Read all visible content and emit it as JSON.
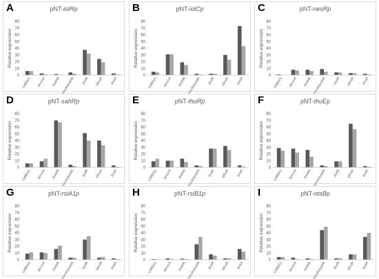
{
  "colors": {
    "series1": "#595959",
    "series2": "#a6a6a6",
    "axis": "#bfbfbf",
    "text": "#595959"
  },
  "ylabel": "Relative expression",
  "categories": [
    "LMB001",
    "ΔmcnA",
    "ΔsahR",
    "ΔmcnA/ΔsahR",
    "ΔiolR",
    "ΔthuR",
    "ΔrsiA"
  ],
  "chart_data": [
    {
      "letter": "A",
      "title_prefix": "pNT-",
      "title_italic": "iolRp",
      "type": "bar",
      "ylim": [
        0,
        80
      ],
      "yticks": [
        0,
        10,
        20,
        30,
        40,
        50,
        60,
        70,
        80
      ],
      "series": [
        {
          "values": [
            6,
            2.5,
            1.5,
            4,
            37.5,
            24,
            2.5
          ]
        },
        {
          "values": [
            6,
            1,
            0.5,
            2,
            32,
            19,
            1
          ]
        }
      ]
    },
    {
      "letter": "B",
      "title_prefix": "pNT-",
      "title_italic": "iolCp",
      "type": "bar",
      "ylim": [
        0,
        80
      ],
      "yticks": [
        0,
        10,
        20,
        30,
        40,
        50,
        60,
        70,
        80
      ],
      "series": [
        {
          "values": [
            5,
            31,
            19,
            2,
            2,
            30,
            73
          ]
        },
        {
          "values": [
            4,
            31,
            15,
            1,
            2,
            23,
            43
          ]
        }
      ]
    },
    {
      "letter": "C",
      "title_prefix": "pNT-",
      "title_italic": "nesRp",
      "type": "bar",
      "ylim": [
        0,
        80
      ],
      "yticks": [
        0,
        10,
        20,
        30,
        40,
        50,
        60,
        70,
        80
      ],
      "series": [
        {
          "values": [
            1,
            8,
            8,
            9,
            4,
            3,
            2
          ]
        },
        {
          "values": [
            0.5,
            7,
            6,
            5,
            4,
            3,
            1
          ]
        }
      ]
    },
    {
      "letter": "D",
      "title_prefix": "pNT-",
      "title_italic": "sahRp",
      "type": "bar",
      "ylim": [
        0,
        80
      ],
      "yticks": [
        0,
        10,
        20,
        30,
        40,
        50,
        60,
        70,
        80
      ],
      "series": [
        {
          "values": [
            6,
            9,
            70,
            4,
            51,
            40,
            3
          ]
        },
        {
          "values": [
            6,
            13,
            67,
            2,
            40,
            33,
            1
          ]
        }
      ]
    },
    {
      "letter": "E",
      "title_prefix": "pNT-",
      "title_italic": "thuRp",
      "type": "bar",
      "ylim": [
        0,
        80
      ],
      "yticks": [
        0,
        10,
        20,
        30,
        40,
        50,
        60,
        70,
        80
      ],
      "series": [
        {
          "values": [
            9,
            10,
            13,
            3,
            28,
            32,
            3
          ]
        },
        {
          "values": [
            13,
            10,
            8,
            2,
            28,
            26,
            1
          ]
        }
      ]
    },
    {
      "letter": "F",
      "title_prefix": "pNT-",
      "title_italic": "thuEp",
      "type": "bar",
      "ylim": [
        0,
        80
      ],
      "yticks": [
        0,
        10,
        20,
        30,
        40,
        50,
        60,
        70,
        80
      ],
      "series": [
        {
          "values": [
            29,
            28,
            26,
            3,
            9,
            65,
            2
          ]
        },
        {
          "values": [
            25,
            22,
            16,
            2,
            9,
            57,
            1
          ]
        }
      ]
    },
    {
      "letter": "G",
      "title_prefix": "pNT-",
      "title_italic": "rsiA1p",
      "type": "bar",
      "ylim": [
        0,
        80
      ],
      "yticks": [
        0,
        10,
        20,
        30,
        40,
        50,
        60,
        70,
        80
      ],
      "series": [
        {
          "values": [
            9,
            11,
            16,
            3,
            30,
            3,
            2
          ]
        },
        {
          "values": [
            11,
            10,
            21,
            3,
            35,
            4,
            1
          ]
        }
      ]
    },
    {
      "letter": "H",
      "title_prefix": "pNT-",
      "title_italic": "rsiB1p",
      "type": "bar",
      "ylim": [
        0,
        80
      ],
      "yticks": [
        0,
        10,
        20,
        30,
        40,
        50,
        60,
        70,
        80
      ],
      "series": [
        {
          "values": [
            1,
            2,
            1.5,
            23,
            8,
            2,
            16
          ]
        },
        {
          "values": [
            0.5,
            1,
            1,
            34,
            6,
            2,
            12
          ]
        }
      ]
    },
    {
      "letter": "I",
      "title_prefix": "pNT-",
      "title_italic": "otsBp",
      "type": "bar",
      "ylim": [
        0,
        80
      ],
      "yticks": [
        0,
        10,
        20,
        30,
        40,
        50,
        60,
        70,
        80
      ],
      "series": [
        {
          "values": [
            4,
            3,
            2,
            44,
            2,
            8,
            34
          ]
        },
        {
          "values": [
            4,
            1,
            1,
            49,
            2,
            8,
            40
          ]
        }
      ]
    }
  ]
}
